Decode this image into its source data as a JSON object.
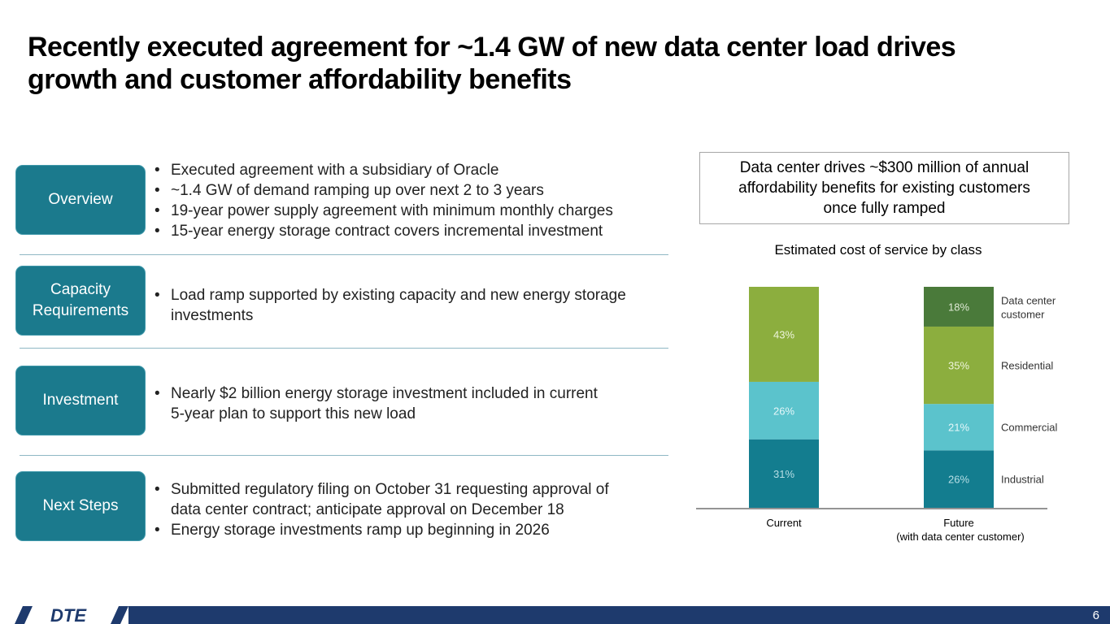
{
  "title": {
    "line1": "Recently executed agreement for ~1.4 GW of new data center load drives",
    "line2": "growth and customer affordability benefits"
  },
  "sections": [
    {
      "label": "Overview",
      "bullets": [
        "Executed agreement with a subsidiary of Oracle",
        "~1.4 GW of demand ramping up over next 2 to 3 years",
        "19-year power supply agreement with minimum monthly charges",
        "15-year energy storage contract covers incremental investment"
      ]
    },
    {
      "label_line1": "Capacity",
      "label_line2": "Requirements",
      "bullet1_line1": "Load ramp supported by existing capacity and new energy storage",
      "bullet1_line2": "investments"
    },
    {
      "label": "Investment",
      "bullet1_line1": "Nearly $2 billion energy storage investment included in current",
      "bullet1_line2": "5-year plan to support this new load"
    },
    {
      "label": "Next Steps",
      "bullet1_line1": "Submitted regulatory filing on October 31 requesting approval of",
      "bullet1_line2": "data center contract; anticipate approval on December 18",
      "bullet2": "Energy storage investments ramp up beginning in 2026"
    }
  ],
  "callout": {
    "line1": "Data center drives ~$300 million of annual",
    "line2": "affordability benefits for existing customers",
    "line3": "once fully ramped"
  },
  "chart_data": {
    "type": "bar",
    "stacked": true,
    "title": "Estimated cost of service by class",
    "categories": [
      "Current",
      "Future"
    ],
    "category_sublabels": [
      "",
      "(with data center customer)"
    ],
    "series": [
      {
        "name": "Industrial",
        "values": [
          31,
          26
        ],
        "color": "#137d8f",
        "label_color": "#b8dfe6"
      },
      {
        "name": "Commercial",
        "values": [
          26,
          21
        ],
        "color": "#5bc3cc",
        "label_color": "#e6f7f9"
      },
      {
        "name": "Residential",
        "values": [
          43,
          35
        ],
        "color": "#8cae3e",
        "label_color": "#eef5dd"
      },
      {
        "name": "Data center customer",
        "values": [
          0,
          18
        ],
        "color": "#4a7a3a",
        "label_color": "#dfead6"
      }
    ],
    "legend_labels": [
      [
        "Industrial"
      ],
      [
        "Commercial"
      ],
      [
        "Residential"
      ],
      [
        "Data center",
        "customer"
      ]
    ],
    "data_labels": [
      [
        "31%",
        "26%"
      ],
      [
        "26%",
        "21%"
      ],
      [
        "43%",
        "35%"
      ],
      [
        "",
        "18%"
      ]
    ],
    "ylim": [
      0,
      100
    ]
  },
  "footer": {
    "brand": "DTE",
    "page": "6",
    "color": "#1e3a6d"
  }
}
